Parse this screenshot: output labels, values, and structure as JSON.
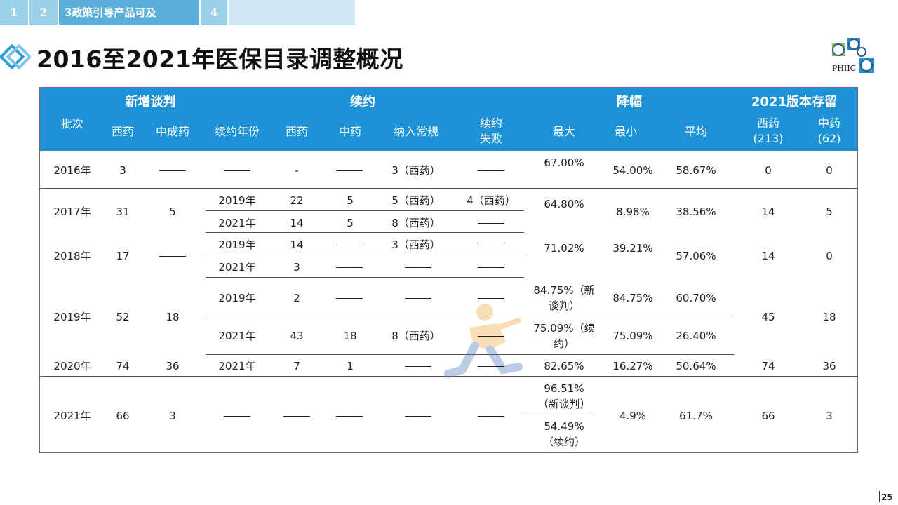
{
  "nav": {
    "tabs": [
      "1",
      "2",
      "3政策引导产品可及",
      "4",
      ""
    ]
  },
  "title": "2016至2021年医保目录调整概况",
  "logo": {
    "text": "PHIIC"
  },
  "page_number": "25",
  "table": {
    "group_headers": {
      "batch": "批次",
      "new": "新增谈判",
      "renew": "续约",
      "cut": "降幅",
      "remain": "2021版本存留"
    },
    "sub_headers": {
      "new_west": "西药",
      "new_tcm": "中成药",
      "renew_year": "续约年份",
      "renew_west": "西药",
      "renew_tcm": "中药",
      "renew_regular": "纳入常规",
      "renew_fail": "续约\n失败",
      "cut_max": "最大",
      "cut_min": "最小",
      "cut_avg": "平均",
      "remain_west": "西药\n(213)",
      "remain_tcm": "中药\n(62)"
    },
    "rows": {
      "r2016": {
        "year": "2016年",
        "new_west": "3",
        "renew_west": "-",
        "regular": "3（西药）",
        "max": "67.00%",
        "min": "54.00%",
        "avg": "58.67%",
        "remain_west": "0",
        "remain_tcm": "0"
      },
      "r2017": {
        "year": "2017年",
        "new_west": "31",
        "new_tcm": "5",
        "max": "64.80%",
        "min": "8.98%",
        "avg": "38.56%",
        "remain_west": "14",
        "remain_tcm": "5",
        "a": {
          "ryear": "2019年",
          "west": "22",
          "tcm": "5",
          "regular": "5（西药）",
          "fail": "4（西药）"
        },
        "b": {
          "ryear": "2021年",
          "west": "14",
          "tcm": "5",
          "regular": "8（西药）"
        }
      },
      "r2018": {
        "year": "2018年",
        "new_west": "17",
        "max": "71.02%",
        "min": "39.21%",
        "avg": "57.06%",
        "remain_west": "14",
        "remain_tcm": "0",
        "a": {
          "ryear": "2019年",
          "west": "14",
          "regular": "3（西药）"
        },
        "b": {
          "ryear": "2021年",
          "west": "3"
        }
      },
      "r2019": {
        "year": "2019年",
        "new_west": "52",
        "new_tcm": "18",
        "remain_west": "45",
        "remain_tcm": "18",
        "a": {
          "ryear": "2019年",
          "west": "2",
          "max": "84.75%（新\n谈判）",
          "min": "84.75%",
          "avg": "60.70%"
        },
        "b": {
          "ryear": "2021年",
          "west": "43",
          "tcm": "18",
          "regular": "8（西药）",
          "max": "75.09%（续\n约）",
          "min": "75.09%",
          "avg": "26.40%"
        }
      },
      "r2020": {
        "year": "2020年",
        "new_west": "74",
        "new_tcm": "36",
        "ryear": "2021年",
        "west": "7",
        "tcm": "1",
        "max": "82.65%",
        "min": "16.27%",
        "avg": "50.64%",
        "remain_west": "74",
        "remain_tcm": "36"
      },
      "r2021": {
        "year": "2021年",
        "new_west": "66",
        "new_tcm": "3",
        "max_a": "96.51%\n（新谈判）",
        "max_b": "54.49%\n（续约）",
        "min": "4.9%",
        "avg": "61.7%",
        "remain_west": "66",
        "remain_tcm": "3"
      }
    }
  },
  "colors": {
    "header_blue": "#1d92d6",
    "tab_blue": "#5aaed9",
    "tab_light": "#9ccfea"
  }
}
